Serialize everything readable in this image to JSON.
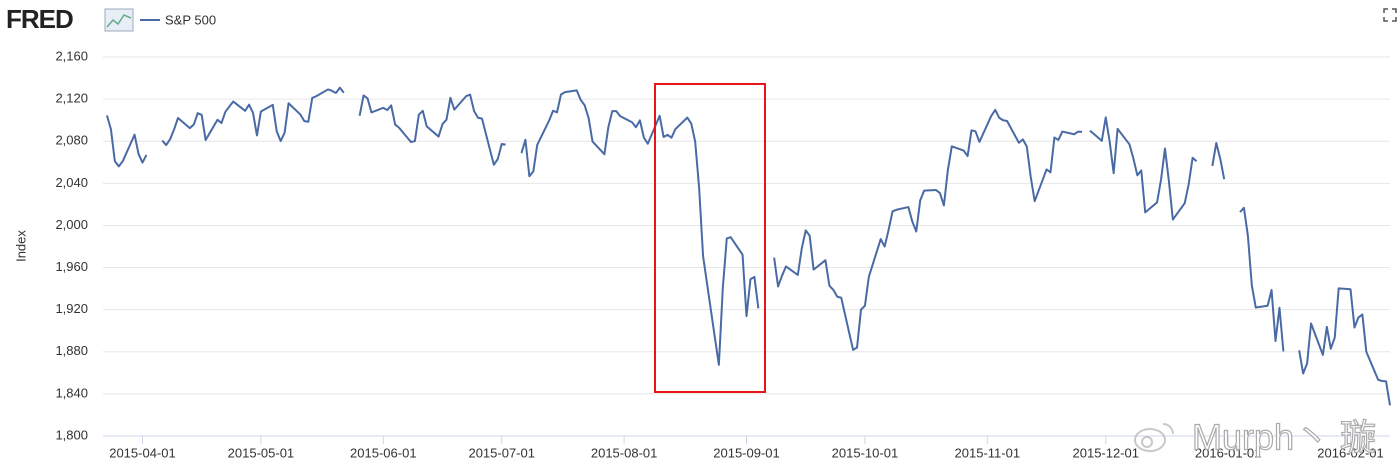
{
  "header": {
    "logo": "FRED"
  },
  "watermark": "Murph丶 璇",
  "chart_data": {
    "type": "line",
    "ylabel": "Index",
    "grid": true,
    "xlim": [
      "2015-03-22",
      "2016-02-11"
    ],
    "xticks": [
      "2015-04-01",
      "2015-05-01",
      "2015-06-01",
      "2015-07-01",
      "2015-08-01",
      "2015-09-01",
      "2015-10-01",
      "2015-11-01",
      "2015-12-01",
      "2016-01-01",
      "2016-02-01"
    ],
    "ylim": [
      1800,
      2160
    ],
    "yticks": [
      {
        "value": 1800,
        "label": "1,800"
      },
      {
        "value": 1840,
        "label": "1,840"
      },
      {
        "value": 1880,
        "label": "1,880"
      },
      {
        "value": 1920,
        "label": "1,920"
      },
      {
        "value": 1960,
        "label": "1,960"
      },
      {
        "value": 2000,
        "label": "2,000"
      },
      {
        "value": 2040,
        "label": "2,040"
      },
      {
        "value": 2080,
        "label": "2,080"
      },
      {
        "value": 2120,
        "label": "2,120"
      },
      {
        "value": 2160,
        "label": "2,160"
      }
    ],
    "x": [
      "2015-03-23",
      "2015-03-24",
      "2015-03-25",
      "2015-03-26",
      "2015-03-27",
      "2015-03-30",
      "2015-03-31",
      "2015-04-01",
      "2015-04-02",
      "2015-04-03",
      "2015-04-06",
      "2015-04-07",
      "2015-04-08",
      "2015-04-09",
      "2015-04-10",
      "2015-04-13",
      "2015-04-14",
      "2015-04-15",
      "2015-04-16",
      "2015-04-17",
      "2015-04-20",
      "2015-04-21",
      "2015-04-22",
      "2015-04-23",
      "2015-04-24",
      "2015-04-27",
      "2015-04-28",
      "2015-04-29",
      "2015-04-30",
      "2015-05-01",
      "2015-05-04",
      "2015-05-05",
      "2015-05-06",
      "2015-05-07",
      "2015-05-08",
      "2015-05-11",
      "2015-05-12",
      "2015-05-13",
      "2015-05-14",
      "2015-05-15",
      "2015-05-18",
      "2015-05-19",
      "2015-05-20",
      "2015-05-21",
      "2015-05-22",
      "2015-05-25",
      "2015-05-26",
      "2015-05-27",
      "2015-05-28",
      "2015-05-29",
      "2015-06-01",
      "2015-06-02",
      "2015-06-03",
      "2015-06-04",
      "2015-06-05",
      "2015-06-08",
      "2015-06-09",
      "2015-06-10",
      "2015-06-11",
      "2015-06-12",
      "2015-06-15",
      "2015-06-16",
      "2015-06-17",
      "2015-06-18",
      "2015-06-19",
      "2015-06-22",
      "2015-06-23",
      "2015-06-24",
      "2015-06-25",
      "2015-06-26",
      "2015-06-29",
      "2015-06-30",
      "2015-07-01",
      "2015-07-02",
      "2015-07-03",
      "2015-07-06",
      "2015-07-07",
      "2015-07-08",
      "2015-07-09",
      "2015-07-10",
      "2015-07-13",
      "2015-07-14",
      "2015-07-15",
      "2015-07-16",
      "2015-07-17",
      "2015-07-20",
      "2015-07-21",
      "2015-07-22",
      "2015-07-23",
      "2015-07-24",
      "2015-07-27",
      "2015-07-28",
      "2015-07-29",
      "2015-07-30",
      "2015-07-31",
      "2015-08-03",
      "2015-08-04",
      "2015-08-05",
      "2015-08-06",
      "2015-08-07",
      "2015-08-10",
      "2015-08-11",
      "2015-08-12",
      "2015-08-13",
      "2015-08-14",
      "2015-08-17",
      "2015-08-18",
      "2015-08-19",
      "2015-08-20",
      "2015-08-21",
      "2015-08-24",
      "2015-08-25",
      "2015-08-26",
      "2015-08-27",
      "2015-08-28",
      "2015-08-31",
      "2015-09-01",
      "2015-09-02",
      "2015-09-03",
      "2015-09-04",
      "2015-09-07",
      "2015-09-08",
      "2015-09-09",
      "2015-09-10",
      "2015-09-11",
      "2015-09-14",
      "2015-09-15",
      "2015-09-16",
      "2015-09-17",
      "2015-09-18",
      "2015-09-21",
      "2015-09-22",
      "2015-09-23",
      "2015-09-24",
      "2015-09-25",
      "2015-09-28",
      "2015-09-29",
      "2015-09-30",
      "2015-10-01",
      "2015-10-02",
      "2015-10-05",
      "2015-10-06",
      "2015-10-07",
      "2015-10-08",
      "2015-10-09",
      "2015-10-12",
      "2015-10-13",
      "2015-10-14",
      "2015-10-15",
      "2015-10-16",
      "2015-10-19",
      "2015-10-20",
      "2015-10-21",
      "2015-10-22",
      "2015-10-23",
      "2015-10-26",
      "2015-10-27",
      "2015-10-28",
      "2015-10-29",
      "2015-10-30",
      "2015-11-02",
      "2015-11-03",
      "2015-11-04",
      "2015-11-05",
      "2015-11-06",
      "2015-11-09",
      "2015-11-10",
      "2015-11-11",
      "2015-11-12",
      "2015-11-13",
      "2015-11-16",
      "2015-11-17",
      "2015-11-18",
      "2015-11-19",
      "2015-11-20",
      "2015-11-23",
      "2015-11-24",
      "2015-11-25",
      "2015-11-26",
      "2015-11-27",
      "2015-11-30",
      "2015-12-01",
      "2015-12-02",
      "2015-12-03",
      "2015-12-04",
      "2015-12-07",
      "2015-12-08",
      "2015-12-09",
      "2015-12-10",
      "2015-12-11",
      "2015-12-14",
      "2015-12-15",
      "2015-12-16",
      "2015-12-17",
      "2015-12-18",
      "2015-12-21",
      "2015-12-22",
      "2015-12-23",
      "2015-12-24",
      "2015-12-25",
      "2015-12-28",
      "2015-12-29",
      "2015-12-30",
      "2015-12-31",
      "2016-01-01",
      "2016-01-04",
      "2016-01-05",
      "2016-01-06",
      "2016-01-07",
      "2016-01-08",
      "2016-01-11",
      "2016-01-12",
      "2016-01-13",
      "2016-01-14",
      "2016-01-15",
      "2016-01-18",
      "2016-01-19",
      "2016-01-20",
      "2016-01-21",
      "2016-01-22",
      "2016-01-25",
      "2016-01-26",
      "2016-01-27",
      "2016-01-28",
      "2016-01-29",
      "2016-02-01",
      "2016-02-02",
      "2016-02-03",
      "2016-02-04",
      "2016-02-05",
      "2016-02-08",
      "2016-02-09",
      "2016-02-10",
      "2016-02-11"
    ],
    "series": [
      {
        "name": "S&P 500",
        "color": "#4a6aa5",
        "values": [
          2104.42,
          2091.5,
          2061.05,
          2056.15,
          2061.02,
          2086.24,
          2067.89,
          2059.69,
          2066.96,
          null,
          2080.62,
          2076.33,
          2081.9,
          2091.18,
          2102.06,
          2092.43,
          2095.84,
          2106.63,
          2104.99,
          2081.18,
          2100.4,
          2097.29,
          2107.96,
          2112.93,
          2117.69,
          2108.92,
          2114.76,
          2106.85,
          2085.51,
          2108.29,
          2114.49,
          2089.46,
          2080.15,
          2088,
          2116.1,
          2105.33,
          2099.12,
          2098.48,
          2121.1,
          2122.73,
          2129.2,
          2127.83,
          2125.85,
          2130.82,
          2126.06,
          null,
          2104.2,
          2123.48,
          2120.79,
          2107.39,
          2111.73,
          2109.6,
          2114.07,
          2095.84,
          2092.83,
          2079.28,
          2080.15,
          2105.2,
          2108.86,
          2094.11,
          2084.43,
          2096.29,
          2100.44,
          2121.24,
          2109.99,
          2122.85,
          2124.2,
          2108.58,
          2102.31,
          2101.49,
          2057.64,
          2063.11,
          2077.42,
          2076.78,
          null,
          2068.76,
          2081.34,
          2046.68,
          2051.31,
          2076.62,
          2099.6,
          2108.95,
          2107.4,
          2124.29,
          2126.64,
          2128.28,
          2119.21,
          2114.15,
          2102.15,
          2079.65,
          2067.64,
          2093.25,
          2108.57,
          2108.63,
          2103.84,
          2098.04,
          2093.32,
          2099.84,
          2083.56,
          2077.57,
          2104.18,
          2084.07,
          2086.05,
          2083.39,
          2091.54,
          2102.44,
          2096.92,
          2079.61,
          2035.73,
          1970.89,
          1893.21,
          1867.61,
          1940.51,
          1987.66,
          1988.87,
          1972.18,
          1913.85,
          1948.86,
          1951.13,
          1921.22,
          null,
          1969.41,
          1942.04,
          1952.29,
          1961.05,
          1953.03,
          1978.09,
          1995.31,
          1990.2,
          1958.03,
          1966.97,
          1942.74,
          1938.76,
          1932.24,
          1931.34,
          1881.77,
          1884.09,
          1920.03,
          1923.82,
          1951.36,
          1987.05,
          1979.92,
          1995.83,
          2013.43,
          2014.89,
          2017.46,
          2003.69,
          1994.24,
          2023.86,
          2033.11,
          2033.66,
          2030.77,
          2018.94,
          2052.51,
          2075.15,
          2071.18,
          2065.89,
          2090.35,
          2089.41,
          2079.36,
          2104.05,
          2109.79,
          2102.31,
          2099.93,
          2099.2,
          2078.58,
          2081.72,
          2075,
          2045.97,
          2023.04,
          2053.19,
          2050.44,
          2083.58,
          2081.24,
          2089.17,
          2086.59,
          2089.14,
          2088.87,
          null,
          2090.11,
          2080.41,
          2102.63,
          2079.51,
          2049.62,
          2091.69,
          2077.07,
          2063.59,
          2047.62,
          2052.23,
          2012.37,
          2021.94,
          2043.41,
          2073.07,
          2041.89,
          2005.55,
          2021.15,
          2038.97,
          2064.29,
          2060.99,
          null,
          2056.5,
          2078.36,
          2063.36,
          2043.94,
          null,
          2012.66,
          2016.71,
          1990.26,
          1943.09,
          1922.03,
          1923.67,
          1938.68,
          1890.28,
          1921.84,
          1880.33,
          null,
          1881.33,
          1859.33,
          1868.99,
          1906.9,
          1877.08,
          1903.63,
          1882.95,
          1893.36,
          1940.24,
          1939.38,
          1903.03,
          1912.53,
          1915.45,
          1880.05,
          1853.44,
          1852.21,
          1851.86,
          1829.08
        ]
      }
    ]
  }
}
